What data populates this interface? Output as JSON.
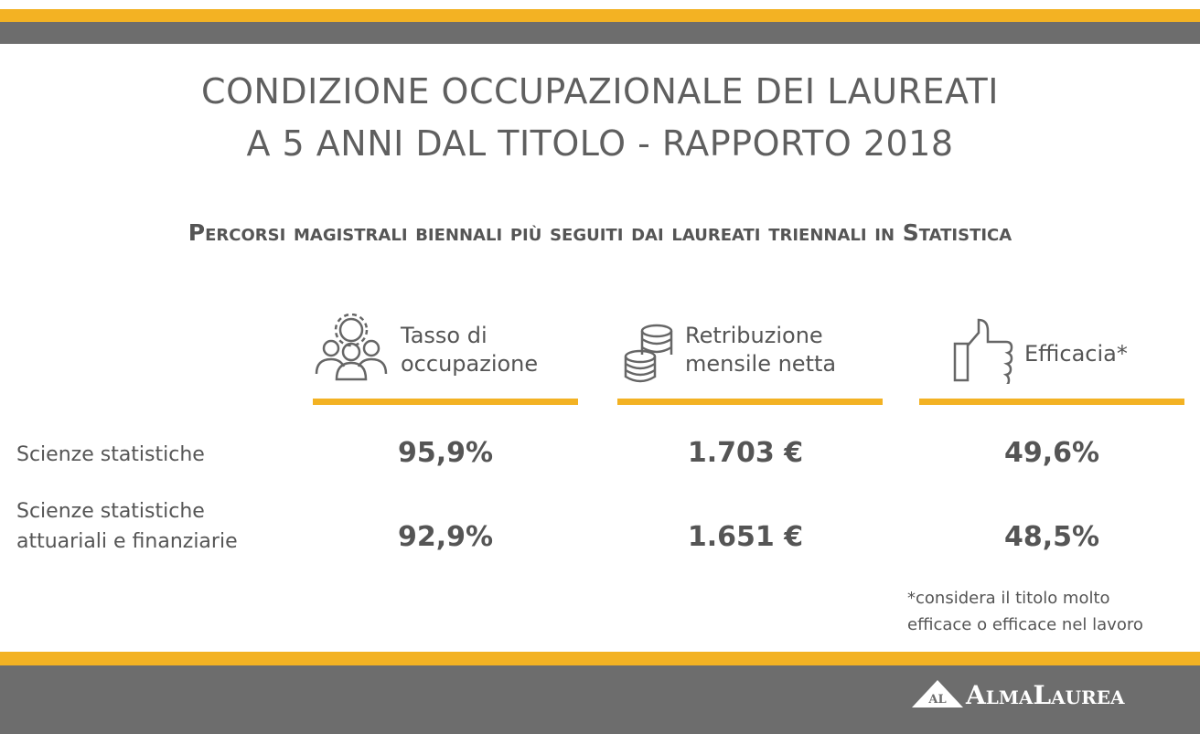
{
  "header": {
    "title": [
      "CONDIZIONE OCCUPAZIONALE DEI LAUREATI",
      "A 5 ANNI DAL TITOLO - RAPPORTO 2018"
    ],
    "subtitle": "Percorsi magistrali biennali più seguiti dai laureati triennali in Statistica"
  },
  "table": {
    "columns": [
      [
        "Tasso di",
        "occupazione"
      ],
      [
        "Retribuzione",
        "mensile netta"
      ],
      [
        "Efficacia*"
      ]
    ],
    "rows": [
      {
        "label": [
          "Scienze statistiche"
        ],
        "values": [
          "95,9%",
          "1.703 €",
          "49,6%"
        ]
      },
      {
        "label": [
          "Scienze statistiche",
          "attuariali e finanziarie"
        ],
        "values": [
          "92,9%",
          "1.651 €",
          "48,5%"
        ]
      }
    ]
  },
  "footnote": [
    "*considera il titolo molto",
    "efficace o efficace nel lavoro"
  ],
  "logo": {
    "mark": "AL",
    "name": "AlmaLaurea"
  }
}
